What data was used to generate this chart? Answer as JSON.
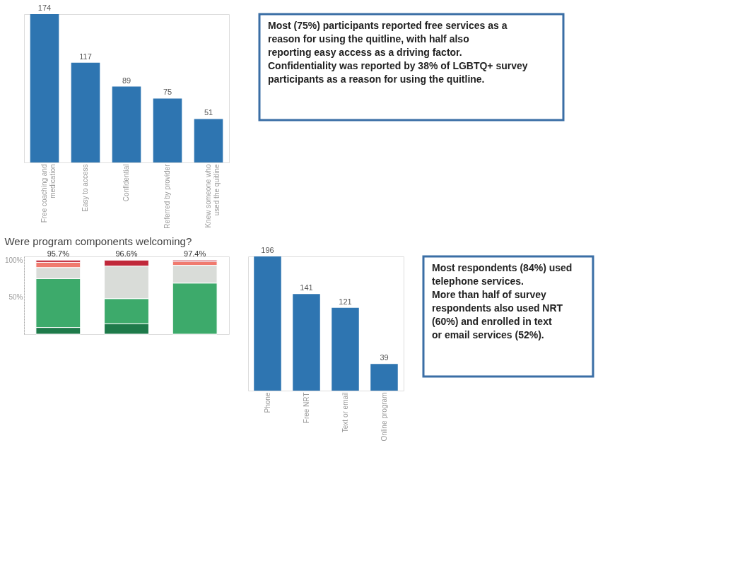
{
  "chart_data": [
    {
      "type": "bar",
      "categories": [
        "Free coaching and medication",
        "Easy to access",
        "Confidential",
        "Referred by provider",
        "Knew someone who used the quitline"
      ],
      "values": [
        174,
        117,
        89,
        75,
        51
      ],
      "color": "#2e75b1",
      "data_labels": true,
      "tick_labels": "x",
      "grid": false,
      "annotations": [
        "Most (75%) participants reported free services as a reason for using the quitline, with half also reporting easy access as a driving factor.",
        "Confidentiality was reported by 38% of LGBTQ+ survey participants as a reason for using the quitline."
      ]
    },
    {
      "type": "bar",
      "categories": [
        "Phone",
        "Free NRT",
        "Text or email",
        "Online program"
      ],
      "values": [
        196,
        141,
        121,
        39
      ],
      "color": "#2e75b1",
      "data_labels": true,
      "tick_labels": "x",
      "grid": false,
      "annotations": [
        "Most respondents (84%) used telephone services.",
        "More than half of survey respondents also used NRT (60%) and enrolled in text or email services (52%)."
      ]
    },
    {
      "type": "bar",
      "title": "Were program components welcoming?",
      "stacked": true,
      "categories": [
        null,
        null,
        null
      ],
      "ylim": [
        0,
        105
      ],
      "yticks": [
        {
          "value": 50,
          "label": "50%"
        },
        {
          "value": 100,
          "label": "100%"
        }
      ],
      "tick_labels": "y",
      "grid": false,
      "series": [
        {
          "color": "#1e7a4a",
          "values": [
            9,
            14,
            null
          ]
        },
        {
          "color": "#3daa6b",
          "values": [
            66,
            34,
            69
          ]
        },
        {
          "color": "#d9dcd8",
          "values": [
            15,
            44,
            24
          ]
        },
        {
          "color": "#f07a6e",
          "values": [
            7,
            null,
            5
          ]
        },
        {
          "color": "#c0283a",
          "values": [
            3,
            8,
            2
          ]
        }
      ],
      "annotations": [
        "95.7%",
        "96.6%",
        "97.4%"
      ]
    }
  ]
}
